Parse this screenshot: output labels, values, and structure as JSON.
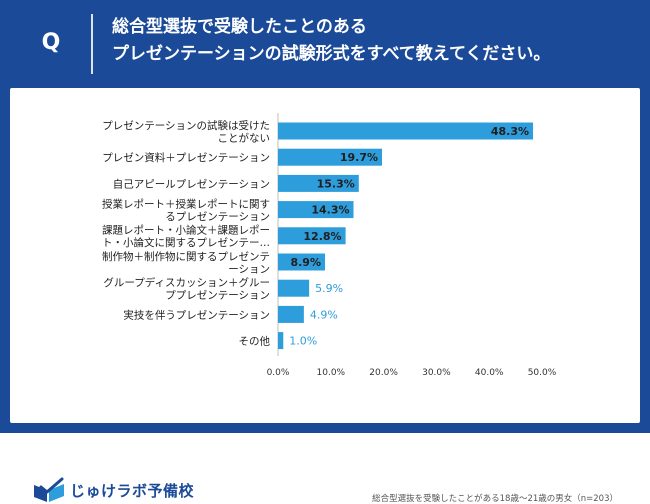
{
  "header": {
    "q_label": "Q",
    "title_line1": "総合型選抜で受験したことのある",
    "title_line2": "プレゼンテーションの試験形式をすべて教えてください。"
  },
  "brand": {
    "name": "じゅけラボ予備校",
    "logo_icon": "book-check-icon"
  },
  "footnote": "総合型選抜を受験したことがある18歳〜21歳の男女（n=203）",
  "colors": {
    "frame": "#1a4a98",
    "bar": "#2e9ddb",
    "label_inside": "#1f1f1f",
    "label_outside": "#2e9ddb"
  },
  "chart_data": {
    "type": "bar",
    "orientation": "horizontal",
    "categories": [
      [
        "プレゼンテーションの試験は受けた",
        "ことがない"
      ],
      [
        "プレゼン資料＋プレゼンテーション"
      ],
      [
        "自己アピールプレゼンテーション"
      ],
      [
        "授業レポート＋授業レポートに関す",
        "るプレゼンテーション"
      ],
      [
        "課題レポート・小論文＋課題レポー",
        "ト・小論文に関するプレゼンテー…"
      ],
      [
        "制作物＋制作物に関するプレゼンテ",
        "ーション"
      ],
      [
        "グループディスカッション＋グルー",
        "ププレゼンテーション"
      ],
      [
        "実技を伴うプレゼンテーション"
      ],
      [
        "その他"
      ]
    ],
    "values": [
      48.3,
      19.7,
      15.3,
      14.3,
      12.8,
      8.9,
      5.9,
      4.9,
      1.0
    ],
    "value_labels": [
      "48.3%",
      "19.7%",
      "15.3%",
      "14.3%",
      "12.8%",
      "8.9%",
      "5.9%",
      "4.9%",
      "1.0%"
    ],
    "x_ticks": [
      "0.0%",
      "10.0%",
      "20.0%",
      "30.0%",
      "40.0%",
      "50.0%"
    ],
    "xlim": [
      0,
      50
    ],
    "grid": false,
    "legend": "none"
  }
}
